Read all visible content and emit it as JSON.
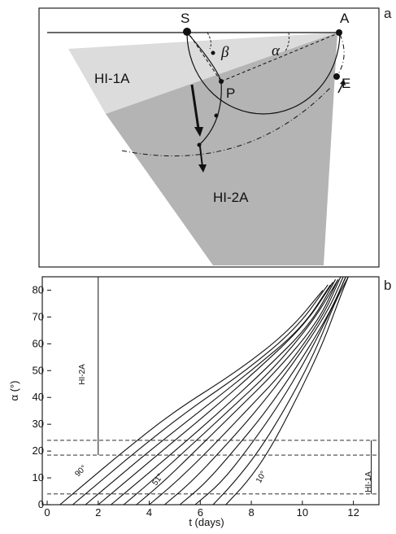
{
  "panel_a": {
    "label": "a",
    "points": {
      "S": "S",
      "A": "A",
      "P": "P",
      "E": "E"
    },
    "angles": {
      "beta": "β",
      "alpha": "α"
    },
    "regions": {
      "hi1a": "HI-1A",
      "hi2a": "HI-2A"
    }
  },
  "panel_b": {
    "label": "b",
    "xlabel": "t (days)",
    "ylabel": "α (°)",
    "hi2a_label": "HI-2A",
    "hi1a_label": "HI-1A",
    "annotations": [
      "90°",
      "51°",
      "10°"
    ]
  },
  "chart_data": {
    "type": "line",
    "xlabel": "t (days)",
    "ylabel": "α (°)",
    "xlim": [
      0,
      13
    ],
    "ylim": [
      0,
      85
    ],
    "xticks": [
      0,
      2,
      4,
      6,
      8,
      10,
      12
    ],
    "yticks": [
      0,
      10,
      20,
      30,
      40,
      50,
      60,
      70,
      80
    ],
    "series": [
      {
        "x": [
          0.5,
          1.5,
          3.0,
          5.0,
          7.5,
          9.5,
          10.8
        ],
        "y": [
          0,
          8,
          20,
          35,
          50,
          65,
          80
        ]
      },
      {
        "x": [
          1.0,
          2.0,
          3.5,
          5.5,
          7.8,
          9.8,
          11.0
        ],
        "y": [
          0,
          8,
          20,
          35,
          50,
          66,
          82
        ]
      },
      {
        "x": [
          1.5,
          2.5,
          4.0,
          6.0,
          8.0,
          10.0,
          11.1
        ],
        "y": [
          0,
          8,
          20,
          35,
          50,
          66,
          82
        ]
      },
      {
        "x": [
          2.0,
          3.0,
          4.5,
          6.4,
          8.2,
          10.1,
          11.2
        ],
        "y": [
          0,
          8,
          20,
          35,
          50,
          67,
          83
        ]
      },
      {
        "x": [
          2.5,
          3.5,
          5.0,
          6.8,
          8.5,
          10.3,
          11.3
        ],
        "y": [
          0,
          8,
          20,
          35,
          50,
          67,
          84
        ]
      },
      {
        "x": [
          3.0,
          4.0,
          5.4,
          7.1,
          8.8,
          10.4,
          11.4
        ],
        "y": [
          0,
          8,
          20,
          35,
          50,
          68,
          84
        ]
      },
      {
        "x": [
          3.5,
          4.5,
          5.8,
          7.4,
          9.0,
          10.6,
          11.4
        ],
        "y": [
          0,
          8,
          20,
          35,
          50,
          68,
          84
        ]
      },
      {
        "x": [
          4.0,
          5.0,
          6.3,
          7.8,
          9.3,
          10.8,
          11.5
        ],
        "y": [
          0,
          8,
          20,
          35,
          50,
          70,
          85
        ]
      },
      {
        "x": [
          4.6,
          5.6,
          6.8,
          8.2,
          9.6,
          11.0,
          11.6
        ],
        "y": [
          0,
          8,
          20,
          35,
          52,
          72,
          85
        ]
      },
      {
        "x": [
          5.2,
          6.2,
          7.3,
          8.6,
          9.9,
          11.1,
          11.7
        ],
        "y": [
          0,
          8,
          20,
          35,
          53,
          72,
          85
        ]
      },
      {
        "x": [
          5.8,
          6.8,
          7.8,
          9.0,
          10.2,
          11.2,
          11.7
        ],
        "y": [
          0,
          8,
          20,
          36,
          55,
          74,
          85
        ]
      },
      {
        "x": [
          6.5,
          7.3,
          8.3,
          9.4,
          10.5,
          11.3,
          11.8
        ],
        "y": [
          0,
          8,
          20,
          37,
          57,
          76,
          85
        ]
      },
      {
        "x": [
          7.0,
          7.8,
          8.7,
          9.8,
          10.8,
          11.5,
          11.8
        ],
        "y": [
          0,
          8,
          20,
          40,
          60,
          78,
          85
        ]
      }
    ],
    "hlines_dashed": [
      4,
      18.5,
      24
    ],
    "vline_hi2a": {
      "x": 2,
      "y_from": 18.5,
      "y_to": 85
    },
    "vline_hi1a": {
      "x": 12.7,
      "y_from": 4,
      "y_to": 24
    }
  },
  "colors": {
    "light_region": "#dcdcdc",
    "dark_region": "#b4b4b4",
    "line": "#111111"
  }
}
